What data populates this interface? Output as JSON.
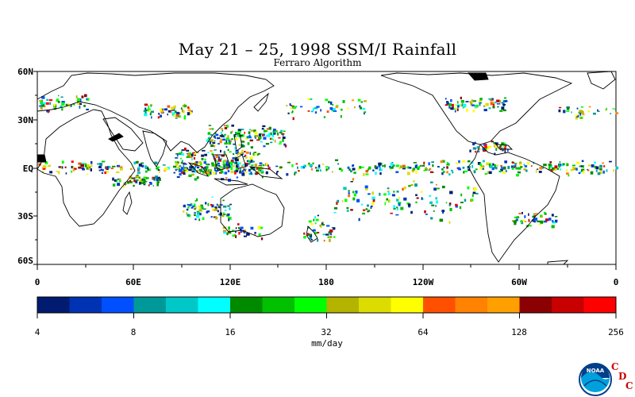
{
  "title": "May 21 – 25, 1998 SSM/I Rainfall",
  "subtitle": "Ferraro Algorithm",
  "lat_labels": [
    "60N",
    "30N",
    "EQ",
    "30S",
    "60S"
  ],
  "lon_labels": [
    "0",
    "60E",
    "120E",
    "180",
    "120W",
    "60W",
    "0"
  ],
  "colorbar": {
    "colors": [
      "#001b6f",
      "#0033b3",
      "#0050ff",
      "#009999",
      "#00c8c8",
      "#00ffff",
      "#008a00",
      "#00c000",
      "#00ff00",
      "#b3b300",
      "#dcdc00",
      "#ffff00",
      "#ff5000",
      "#ff8200",
      "#ffa000",
      "#8b0000",
      "#c80000",
      "#ff0000"
    ],
    "tick_labels": [
      "4",
      "8",
      "16",
      "32",
      "64",
      "128",
      "256"
    ],
    "units": "mm/day"
  },
  "logo": {
    "name": "NOAA",
    "letters": [
      "C",
      "D",
      "C"
    ]
  }
}
